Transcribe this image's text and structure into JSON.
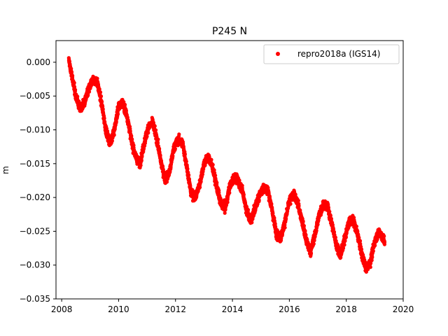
{
  "chart_data": {
    "type": "scatter",
    "title": "P245 N",
    "xlabel": "",
    "ylabel": "m",
    "xlim": [
      2007.8,
      2020.0
    ],
    "ylim": [
      -0.035,
      0.0032
    ],
    "xticks": [
      2008,
      2010,
      2012,
      2014,
      2016,
      2018,
      2020
    ],
    "xtick_labels": [
      "2008",
      "2010",
      "2012",
      "2014",
      "2016",
      "2018",
      "2020"
    ],
    "yticks": [
      0.0,
      -0.005,
      -0.01,
      -0.015,
      -0.02,
      -0.025,
      -0.03,
      -0.035
    ],
    "ytick_labels": [
      "0.000",
      "−0.005",
      "−0.010",
      "−0.015",
      "−0.020",
      "−0.025",
      "−0.030",
      "−0.035"
    ],
    "grid": false,
    "legend": {
      "position": "top-right",
      "entries": [
        "repro2018a (IGS14)"
      ]
    },
    "series": [
      {
        "name": "repro2018a (IGS14)",
        "color": "#ff0000",
        "marker": "circle",
        "x_range": [
          2008.25,
          2019.35
        ],
        "points": [
          [
            2008.25,
            0.0005
          ],
          [
            2008.35,
            -0.002
          ],
          [
            2008.5,
            -0.005
          ],
          [
            2008.65,
            -0.007
          ],
          [
            2008.8,
            -0.006
          ],
          [
            2008.95,
            -0.004
          ],
          [
            2009.1,
            -0.0025
          ],
          [
            2009.25,
            -0.003
          ],
          [
            2009.4,
            -0.006
          ],
          [
            2009.55,
            -0.01
          ],
          [
            2009.7,
            -0.012
          ],
          [
            2009.85,
            -0.01
          ],
          [
            2010.0,
            -0.0065
          ],
          [
            2010.15,
            -0.006
          ],
          [
            2010.3,
            -0.008
          ],
          [
            2010.45,
            -0.0115
          ],
          [
            2010.6,
            -0.014
          ],
          [
            2010.75,
            -0.015
          ],
          [
            2010.9,
            -0.012
          ],
          [
            2011.05,
            -0.0095
          ],
          [
            2011.2,
            -0.009
          ],
          [
            2011.35,
            -0.0115
          ],
          [
            2011.5,
            -0.015
          ],
          [
            2011.65,
            -0.0175
          ],
          [
            2011.8,
            -0.016
          ],
          [
            2011.95,
            -0.0125
          ],
          [
            2012.1,
            -0.0115
          ],
          [
            2012.25,
            -0.012
          ],
          [
            2012.4,
            -0.0155
          ],
          [
            2012.55,
            -0.0195
          ],
          [
            2012.7,
            -0.02
          ],
          [
            2012.85,
            -0.018
          ],
          [
            2013.0,
            -0.015
          ],
          [
            2013.15,
            -0.014
          ],
          [
            2013.3,
            -0.0155
          ],
          [
            2013.45,
            -0.0185
          ],
          [
            2013.6,
            -0.021
          ],
          [
            2013.75,
            -0.0215
          ],
          [
            2013.9,
            -0.0185
          ],
          [
            2014.05,
            -0.017
          ],
          [
            2014.2,
            -0.0175
          ],
          [
            2014.35,
            -0.019
          ],
          [
            2014.5,
            -0.022
          ],
          [
            2014.65,
            -0.0235
          ],
          [
            2014.8,
            -0.0215
          ],
          [
            2014.95,
            -0.0195
          ],
          [
            2015.1,
            -0.0185
          ],
          [
            2015.25,
            -0.019
          ],
          [
            2015.4,
            -0.022
          ],
          [
            2015.55,
            -0.0255
          ],
          [
            2015.7,
            -0.026
          ],
          [
            2015.85,
            -0.0235
          ],
          [
            2016.0,
            -0.0205
          ],
          [
            2016.15,
            -0.0195
          ],
          [
            2016.3,
            -0.021
          ],
          [
            2016.45,
            -0.0235
          ],
          [
            2016.6,
            -0.0265
          ],
          [
            2016.75,
            -0.028
          ],
          [
            2016.9,
            -0.0255
          ],
          [
            2017.05,
            -0.0225
          ],
          [
            2017.2,
            -0.021
          ],
          [
            2017.35,
            -0.0215
          ],
          [
            2017.5,
            -0.024
          ],
          [
            2017.65,
            -0.027
          ],
          [
            2017.8,
            -0.0285
          ],
          [
            2017.95,
            -0.026
          ],
          [
            2018.1,
            -0.0235
          ],
          [
            2018.25,
            -0.0235
          ],
          [
            2018.4,
            -0.0255
          ],
          [
            2018.55,
            -0.0285
          ],
          [
            2018.7,
            -0.0305
          ],
          [
            2018.85,
            -0.0295
          ],
          [
            2019.0,
            -0.0265
          ],
          [
            2019.15,
            -0.025
          ],
          [
            2019.35,
            -0.0265
          ]
        ]
      }
    ]
  }
}
